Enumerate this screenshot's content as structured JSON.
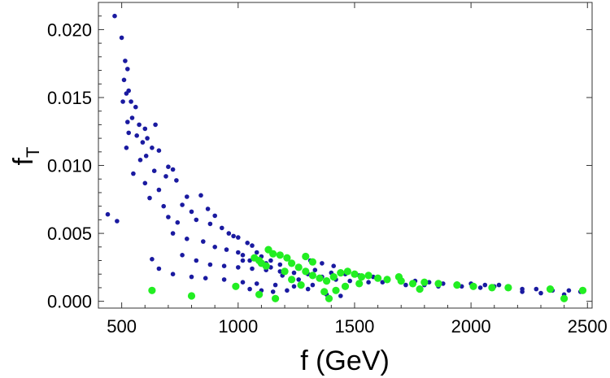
{
  "chart_data": {
    "type": "scatter",
    "title": "",
    "xlabel": "f (GeV)",
    "ylabel_main": "f",
    "ylabel_sub": "T",
    "xlim": [
      400,
      2520
    ],
    "ylim": [
      -0.0005,
      0.022
    ],
    "xticks": [
      500,
      1000,
      1500,
      2000,
      2500
    ],
    "xtick_labels": [
      "500",
      "1000",
      "1500",
      "2000",
      "2500"
    ],
    "yticks": [
      0.0,
      0.005,
      0.01,
      0.015,
      0.02
    ],
    "ytick_labels": [
      "0.000",
      "0.005",
      "0.010",
      "0.015",
      "0.020"
    ],
    "grid": false,
    "series": [
      {
        "name": "blue",
        "color": "#1a1aa0",
        "points": [
          [
            470,
            0.021
          ],
          [
            500,
            0.0194
          ],
          [
            515,
            0.0177
          ],
          [
            525,
            0.0171
          ],
          [
            510,
            0.0163
          ],
          [
            520,
            0.0153
          ],
          [
            530,
            0.0155
          ],
          [
            505,
            0.0147
          ],
          [
            540,
            0.0147
          ],
          [
            560,
            0.0143
          ],
          [
            545,
            0.0135
          ],
          [
            525,
            0.0132
          ],
          [
            575,
            0.013
          ],
          [
            600,
            0.0127
          ],
          [
            645,
            0.013
          ],
          [
            530,
            0.0124
          ],
          [
            565,
            0.0122
          ],
          [
            590,
            0.0117
          ],
          [
            520,
            0.0113
          ],
          [
            610,
            0.012
          ],
          [
            630,
            0.0113
          ],
          [
            605,
            0.0107
          ],
          [
            660,
            0.0111
          ],
          [
            700,
            0.0099
          ],
          [
            580,
            0.0104
          ],
          [
            640,
            0.0096
          ],
          [
            690,
            0.0092
          ],
          [
            720,
            0.0097
          ],
          [
            550,
            0.0094
          ],
          [
            600,
            0.0087
          ],
          [
            660,
            0.0082
          ],
          [
            735,
            0.0089
          ],
          [
            780,
            0.0077
          ],
          [
            840,
            0.0078
          ],
          [
            620,
            0.0076
          ],
          [
            680,
            0.007
          ],
          [
            760,
            0.0071
          ],
          [
            800,
            0.0066
          ],
          [
            870,
            0.0068
          ],
          [
            900,
            0.0063
          ],
          [
            700,
            0.0062
          ],
          [
            740,
            0.0058
          ],
          [
            820,
            0.006
          ],
          [
            880,
            0.0057
          ],
          [
            930,
            0.0054
          ],
          [
            960,
            0.005
          ],
          [
            980,
            0.0048
          ],
          [
            1000,
            0.0047
          ],
          [
            1040,
            0.0043
          ],
          [
            1060,
            0.0041
          ],
          [
            720,
            0.005
          ],
          [
            780,
            0.0046
          ],
          [
            850,
            0.0044
          ],
          [
            900,
            0.004
          ],
          [
            950,
            0.0038
          ],
          [
            1000,
            0.0036
          ],
          [
            1020,
            0.0034
          ],
          [
            1080,
            0.0036
          ],
          [
            1100,
            0.0033
          ],
          [
            1140,
            0.003
          ],
          [
            760,
            0.0034
          ],
          [
            820,
            0.003
          ],
          [
            880,
            0.0027
          ],
          [
            940,
            0.0026
          ],
          [
            1000,
            0.0025
          ],
          [
            1060,
            0.0024
          ],
          [
            1120,
            0.0023
          ],
          [
            1180,
            0.0022
          ],
          [
            1240,
            0.0021
          ],
          [
            1300,
            0.002
          ],
          [
            660,
            0.0024
          ],
          [
            720,
            0.002
          ],
          [
            800,
            0.0018
          ],
          [
            860,
            0.0017
          ],
          [
            940,
            0.0016
          ],
          [
            1020,
            0.0014
          ],
          [
            1080,
            0.0013
          ],
          [
            1160,
            0.0012
          ],
          [
            1240,
            0.0011
          ],
          [
            1320,
            0.0012
          ],
          [
            1050,
            0.003
          ],
          [
            1120,
            0.0028
          ],
          [
            1180,
            0.0027
          ],
          [
            1260,
            0.0025
          ],
          [
            1330,
            0.0023
          ],
          [
            1400,
            0.0021
          ],
          [
            1460,
            0.002
          ],
          [
            1520,
            0.0019
          ],
          [
            1580,
            0.0018
          ],
          [
            1640,
            0.0017
          ],
          [
            1360,
            0.0018
          ],
          [
            1420,
            0.0016
          ],
          [
            1480,
            0.0015
          ],
          [
            1560,
            0.0014
          ],
          [
            1620,
            0.0014
          ],
          [
            1700,
            0.0016
          ],
          [
            1760,
            0.0015
          ],
          [
            1820,
            0.0014
          ],
          [
            1880,
            0.0013
          ],
          [
            1940,
            0.0013
          ],
          [
            1720,
            0.0012
          ],
          [
            1800,
            0.0012
          ],
          [
            1860,
            0.0011
          ],
          [
            1960,
            0.0011
          ],
          [
            2040,
            0.001
          ],
          [
            2100,
            0.0011
          ],
          [
            2160,
            0.001
          ],
          [
            2220,
            0.0009
          ],
          [
            2280,
            0.0009
          ],
          [
            2350,
            0.0008
          ],
          [
            2420,
            0.0008
          ],
          [
            2470,
            0.0007
          ],
          [
            2000,
            0.0013
          ],
          [
            2060,
            0.0012
          ],
          [
            2120,
            0.0012
          ],
          [
            2220,
            0.0007
          ],
          [
            2300,
            0.0006
          ],
          [
            2400,
            0.0005
          ],
          [
            1380,
            0.0005
          ],
          [
            1440,
            0.0004
          ],
          [
            1300,
            0.0009
          ],
          [
            1210,
            0.0008
          ],
          [
            1150,
            0.0007
          ],
          [
            1100,
            0.0008
          ],
          [
            1050,
            0.0009
          ],
          [
            440,
            0.0064
          ],
          [
            480,
            0.0059
          ],
          [
            630,
            0.0031
          ],
          [
            1020,
            0.003
          ],
          [
            1140,
            0.0025
          ],
          [
            1190,
            0.0019
          ],
          [
            1260,
            0.0016
          ],
          [
            1310,
            0.003
          ],
          [
            1360,
            0.0028
          ],
          [
            1410,
            0.0026
          ]
        ]
      },
      {
        "name": "green",
        "color": "#22ee22",
        "points": [
          [
            630,
            0.0008
          ],
          [
            800,
            0.0004
          ],
          [
            990,
            0.0011
          ],
          [
            1090,
            0.0005
          ],
          [
            1160,
            0.0002
          ],
          [
            1070,
            0.0032
          ],
          [
            1090,
            0.003
          ],
          [
            1100,
            0.0028
          ],
          [
            1130,
            0.0038
          ],
          [
            1150,
            0.0035
          ],
          [
            1180,
            0.0034
          ],
          [
            1210,
            0.0032
          ],
          [
            1230,
            0.0028
          ],
          [
            1260,
            0.0025
          ],
          [
            1290,
            0.0022
          ],
          [
            1320,
            0.0019
          ],
          [
            1350,
            0.0017
          ],
          [
            1380,
            0.0015
          ],
          [
            1410,
            0.0018
          ],
          [
            1440,
            0.0021
          ],
          [
            1470,
            0.0022
          ],
          [
            1500,
            0.002
          ],
          [
            1530,
            0.0018
          ],
          [
            1560,
            0.0019
          ],
          [
            1600,
            0.0017
          ],
          [
            1640,
            0.0016
          ],
          [
            1700,
            0.0015
          ],
          [
            1750,
            0.0013
          ],
          [
            1800,
            0.0014
          ],
          [
            1860,
            0.0013
          ],
          [
            1940,
            0.0012
          ],
          [
            2010,
            0.0011
          ],
          [
            2090,
            0.001
          ],
          [
            2160,
            0.001
          ],
          [
            2340,
            0.0009
          ],
          [
            2480,
            0.0008
          ],
          [
            2400,
            0.0002
          ],
          [
            1390,
            0.0002
          ],
          [
            1370,
            0.0007
          ],
          [
            1420,
            0.0008
          ],
          [
            1230,
            0.0016
          ],
          [
            1270,
            0.0012
          ],
          [
            1200,
            0.0022
          ],
          [
            1320,
            0.0029
          ],
          [
            1460,
            0.0011
          ],
          [
            1520,
            0.0013
          ],
          [
            1690,
            0.0018
          ],
          [
            1780,
            0.0009
          ],
          [
            1120,
            0.0026
          ],
          [
            1290,
            0.0033
          ]
        ]
      }
    ]
  }
}
